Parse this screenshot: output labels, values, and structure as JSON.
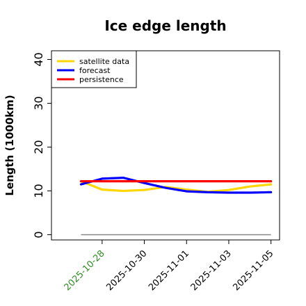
{
  "chart_data": {
    "type": "line",
    "title": "Ice edge length",
    "ylabel": "Length (1000km)",
    "xlabel": "",
    "ylim": [
      -1,
      42
    ],
    "yticks": [
      0,
      10,
      20,
      30,
      40
    ],
    "x": [
      "2025-10-27",
      "2025-10-28",
      "2025-10-29",
      "2025-10-30",
      "2025-10-31",
      "2025-11-01",
      "2025-11-02",
      "2025-11-03",
      "2025-11-04",
      "2025-11-05"
    ],
    "xticks": [
      "2025-10-28",
      "2025-10-30",
      "2025-11-01",
      "2025-11-03",
      "2025-11-05"
    ],
    "xtick_colors": [
      "#2e8b22",
      "#000000",
      "#000000",
      "#000000",
      "#000000"
    ],
    "legend_position": "top-left",
    "grid": false,
    "series": [
      {
        "name": "satellite data",
        "color": "#ffd700",
        "values": [
          12.2,
          10.3,
          10.0,
          10.2,
          10.9,
          10.3,
          9.8,
          10.2,
          11.0,
          11.5
        ]
      },
      {
        "name": "forecast",
        "color": "#0000ff",
        "values": [
          11.5,
          12.8,
          13.0,
          11.8,
          10.7,
          9.9,
          9.7,
          9.6,
          9.6,
          9.7
        ]
      },
      {
        "name": "persistence",
        "color": "#ff0000",
        "values": [
          12.2,
          12.2,
          12.2,
          12.2,
          12.2,
          12.2,
          12.2,
          12.2,
          12.2,
          12.2
        ]
      }
    ],
    "baseline": {
      "value": 0,
      "color": "#888888"
    }
  }
}
